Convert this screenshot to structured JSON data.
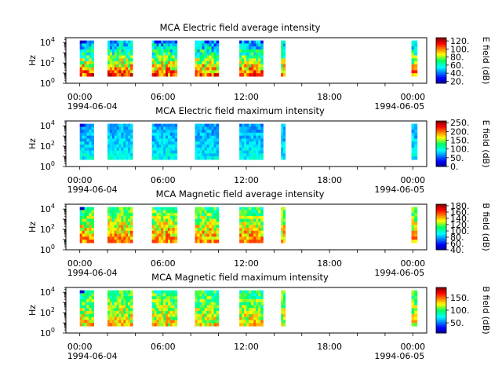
{
  "chart_data": [
    {
      "type": "heatmap",
      "title": "MCA  Electric field average intensity",
      "ylabel": "Hz",
      "y_scale": "log",
      "yticks": [
        {
          "exp": "0"
        },
        {
          "exp": "2"
        },
        {
          "exp": "4"
        }
      ],
      "ylim": [
        1,
        30000
      ],
      "x_ticks": [
        "00:00",
        "06:00",
        "12:00",
        "18:00",
        "00:00"
      ],
      "x_dates": [
        "1994-06-04",
        "1994-06-05"
      ],
      "x_range_hours": [
        -1,
        25
      ],
      "colorbar": {
        "label": "E field (dB)",
        "range": [
          15,
          128
        ],
        "ticks": [
          "20.",
          "40.",
          "60.",
          "80.",
          "100.",
          "120."
        ],
        "tick_values": [
          20,
          40,
          60,
          80,
          100,
          120
        ]
      },
      "data_blocks_hours": [
        [
          0.0,
          1.0
        ],
        [
          2.0,
          3.8
        ],
        [
          5.2,
          7.0
        ],
        [
          8.3,
          10.0
        ],
        [
          11.5,
          13.2
        ],
        [
          14.5,
          14.8
        ],
        [
          23.9,
          24.3
        ]
      ],
      "value_profile": {
        "low_freq_value": 105,
        "high_freq_value": 45,
        "min_value": 20,
        "max_value": 128
      }
    },
    {
      "type": "heatmap",
      "title": "MCA  Electric field maximum intensity",
      "ylabel": "Hz",
      "y_scale": "log",
      "yticks": [
        {
          "exp": "0"
        },
        {
          "exp": "2"
        },
        {
          "exp": "4"
        }
      ],
      "ylim": [
        1,
        30000
      ],
      "x_ticks": [
        "00:00",
        "06:00",
        "12:00",
        "18:00",
        "00:00"
      ],
      "x_dates": [
        "1994-06-04",
        "1994-06-05"
      ],
      "x_range_hours": [
        -1,
        25
      ],
      "colorbar": {
        "label": "E field (dB)",
        "range": [
          0,
          260
        ],
        "ticks": [
          "0.",
          "50.",
          "100.",
          "150.",
          "200.",
          "250."
        ],
        "tick_values": [
          0,
          50,
          100,
          150,
          200,
          250
        ]
      },
      "data_blocks_hours": [
        [
          0.0,
          1.0
        ],
        [
          2.0,
          3.8
        ],
        [
          5.2,
          7.0
        ],
        [
          8.3,
          10.0
        ],
        [
          11.5,
          13.2
        ],
        [
          14.5,
          14.8
        ],
        [
          23.9,
          24.3
        ]
      ],
      "value_profile": {
        "low_freq_value": 95,
        "high_freq_value": 70,
        "min_value": 20,
        "max_value": 130
      }
    },
    {
      "type": "heatmap",
      "title": "MCA  Magnetic field average intensity",
      "ylabel": "Hz",
      "y_scale": "log",
      "yticks": [
        {
          "exp": "0"
        },
        {
          "exp": "2"
        },
        {
          "exp": "4"
        }
      ],
      "ylim": [
        1,
        30000
      ],
      "x_ticks": [
        "00:00",
        "06:00",
        "12:00",
        "18:00",
        "00:00"
      ],
      "x_dates": [
        "1994-06-04",
        "1994-06-05"
      ],
      "x_range_hours": [
        -1,
        25
      ],
      "colorbar": {
        "label": "B field (dB)",
        "range": [
          40,
          185
        ],
        "ticks": [
          "40.",
          "60.",
          "80.",
          "100.",
          "120.",
          "140.",
          "160.",
          "180."
        ],
        "tick_values": [
          40,
          60,
          80,
          100,
          120,
          140,
          160,
          180
        ]
      },
      "data_blocks_hours": [
        [
          0.0,
          1.0
        ],
        [
          2.0,
          3.8
        ],
        [
          5.2,
          7.0
        ],
        [
          8.3,
          10.0
        ],
        [
          11.5,
          13.2
        ],
        [
          14.5,
          14.8
        ],
        [
          23.9,
          24.3
        ]
      ],
      "value_profile": {
        "low_freq_value": 150,
        "high_freq_value": 110,
        "min_value": 45,
        "max_value": 160
      }
    },
    {
      "type": "heatmap",
      "title": "MCA  Magnetic field maximum intensity",
      "ylabel": "Hz",
      "y_scale": "log",
      "yticks": [
        {
          "exp": "0"
        },
        {
          "exp": "2"
        },
        {
          "exp": "4"
        }
      ],
      "ylim": [
        1,
        30000
      ],
      "x_ticks": [
        "00:00",
        "06:00",
        "12:00",
        "18:00",
        "00:00"
      ],
      "x_dates": [
        "1994-06-04",
        "1994-06-05"
      ],
      "x_range_hours": [
        -1,
        25
      ],
      "colorbar": {
        "label": "B field (dB)",
        "range": [
          10,
          190
        ],
        "ticks": [
          "50.",
          "100.",
          "150."
        ],
        "tick_values": [
          50,
          100,
          150
        ]
      },
      "data_blocks_hours": [
        [
          0.0,
          1.0
        ],
        [
          2.0,
          3.8
        ],
        [
          5.2,
          7.0
        ],
        [
          8.3,
          10.0
        ],
        [
          11.5,
          13.2
        ],
        [
          14.5,
          14.8
        ],
        [
          23.9,
          24.3
        ]
      ],
      "value_profile": {
        "low_freq_value": 130,
        "high_freq_value": 95,
        "min_value": 20,
        "max_value": 160
      }
    }
  ]
}
